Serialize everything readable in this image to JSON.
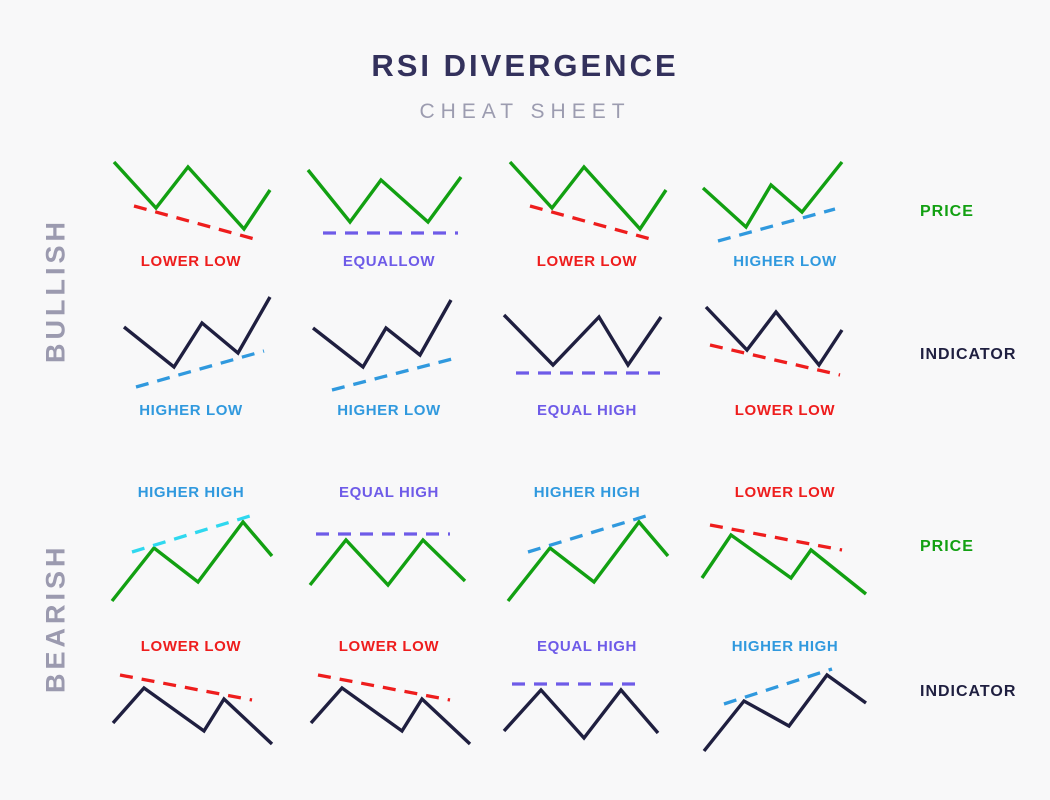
{
  "title": "RSI DIVERGENCE",
  "subtitle": "CHEAT SHEET",
  "colors": {
    "background": "#f8f8f9",
    "title_navy": "#33315c",
    "subtitle_gray": "#9c9cb0",
    "side_gray": "#9b9aaf",
    "green": "#12a012",
    "dark": "#1f1f40",
    "red": "#ee1d1d",
    "blue": "#3099de",
    "cyan": "#2fd8ef",
    "purple": "#6e5be8"
  },
  "sections": [
    {
      "name": "bullish",
      "side_label": "BULLISH",
      "label_position": "below",
      "rows": [
        {
          "row_label": "PRICE",
          "row_label_color_key": "green",
          "line_color_key": "green",
          "cells": [
            {
              "label": "LOWER LOW",
              "color_key": "red",
              "zigzag": [
                [
                  8,
                  10
                ],
                [
                  50,
                  56
                ],
                [
                  82,
                  15
                ],
                [
                  138,
                  77
                ],
                [
                  164,
                  38
                ]
              ],
              "trend": [
                [
                  28,
                  54
                ],
                [
                  152,
                  88
                ]
              ]
            },
            {
              "label": "EQUALLOW",
              "color_key": "purple",
              "zigzag": [
                [
                  4,
                  18
                ],
                [
                  46,
                  70
                ],
                [
                  77,
                  28
                ],
                [
                  124,
                  70
                ],
                [
                  157,
                  25
                ]
              ],
              "trend": [
                [
                  19,
                  81
                ],
                [
                  154,
                  81
                ]
              ]
            },
            {
              "label": "LOWER LOW",
              "color_key": "red",
              "zigzag": [
                [
                  8,
                  10
                ],
                [
                  50,
                  56
                ],
                [
                  82,
                  15
                ],
                [
                  138,
                  77
                ],
                [
                  164,
                  38
                ]
              ],
              "trend": [
                [
                  28,
                  54
                ],
                [
                  152,
                  88
                ]
              ]
            },
            {
              "label": "HIGHER LOW",
              "color_key": "blue",
              "zigzag": [
                [
                  3,
                  36
                ],
                [
                  46,
                  75
                ],
                [
                  71,
                  33
                ],
                [
                  102,
                  60
                ],
                [
                  142,
                  10
                ]
              ],
              "trend": [
                [
                  18,
                  89
                ],
                [
                  135,
                  57
                ]
              ]
            }
          ]
        },
        {
          "row_label": "INDICATOR",
          "row_label_color_key": "dark",
          "line_color_key": "dark",
          "cells": [
            {
              "label": "HIGHER LOW",
              "color_key": "blue",
              "zigzag": [
                [
                  18,
                  32
                ],
                [
                  68,
                  72
                ],
                [
                  96,
                  28
                ],
                [
                  132,
                  58
                ],
                [
                  164,
                  2
                ]
              ],
              "trend": [
                [
                  30,
                  92
                ],
                [
                  158,
                  56
                ]
              ]
            },
            {
              "label": "HIGHER LOW",
              "color_key": "blue",
              "zigzag": [
                [
                  9,
                  33
                ],
                [
                  59,
                  72
                ],
                [
                  82,
                  33
                ],
                [
                  116,
                  60
                ],
                [
                  147,
                  5
                ]
              ],
              "trend": [
                [
                  28,
                  95
                ],
                [
                  148,
                  64
                ]
              ]
            },
            {
              "label": "EQUAL HIGH",
              "color_key": "purple",
              "zigzag": [
                [
                  2,
                  20
                ],
                [
                  51,
                  70
                ],
                [
                  97,
                  22
                ],
                [
                  126,
                  70
                ],
                [
                  159,
                  22
                ]
              ],
              "trend": [
                [
                  14,
                  78
                ],
                [
                  158,
                  78
                ]
              ]
            },
            {
              "label": "LOWER LOW",
              "color_key": "red",
              "zigzag": [
                [
                  6,
                  12
                ],
                [
                  47,
                  55
                ],
                [
                  76,
                  17
                ],
                [
                  119,
                  70
                ],
                [
                  142,
                  35
                ]
              ],
              "trend": [
                [
                  10,
                  50
                ],
                [
                  140,
                  80
                ]
              ]
            }
          ]
        }
      ]
    },
    {
      "name": "bearish",
      "side_label": "BEARISH",
      "label_position": "above",
      "rows": [
        {
          "row_label": "PRICE",
          "row_label_color_key": "green",
          "line_color_key": "green",
          "cells": [
            {
              "label": "HIGHER HIGH",
              "color_key": "blue",
              "trend_color_key": "cyan",
              "zigzag": [
                [
                  6,
                  97
                ],
                [
                  48,
                  44
                ],
                [
                  92,
                  78
                ],
                [
                  137,
                  18
                ],
                [
                  166,
                  52
                ]
              ],
              "trend": [
                [
                  26,
                  48
                ],
                [
                  144,
                  12
                ]
              ]
            },
            {
              "label": "EQUAL HIGH",
              "color_key": "purple",
              "zigzag": [
                [
                  6,
                  81
                ],
                [
                  42,
                  36
                ],
                [
                  84,
                  81
                ],
                [
                  119,
                  36
                ],
                [
                  161,
                  77
                ]
              ],
              "trend": [
                [
                  12,
                  30
                ],
                [
                  146,
                  30
                ]
              ]
            },
            {
              "label": "HIGHER HIGH",
              "color_key": "blue",
              "zigzag": [
                [
                  6,
                  97
                ],
                [
                  48,
                  44
                ],
                [
                  92,
                  78
                ],
                [
                  137,
                  18
                ],
                [
                  166,
                  52
                ]
              ],
              "trend": [
                [
                  26,
                  48
                ],
                [
                  144,
                  12
                ]
              ]
            },
            {
              "label": "LOWER LOW",
              "color_key": "red",
              "zigzag": [
                [
                  2,
                  74
                ],
                [
                  31,
                  31
                ],
                [
                  91,
                  74
                ],
                [
                  111,
                  46
                ],
                [
                  166,
                  90
                ]
              ],
              "trend": [
                [
                  10,
                  21
                ],
                [
                  142,
                  46
                ]
              ]
            }
          ]
        },
        {
          "row_label": "INDICATOR",
          "row_label_color_key": "dark",
          "line_color_key": "dark",
          "cells": [
            {
              "label": "LOWER LOW",
              "color_key": "red",
              "zigzag": [
                [
                  7,
                  65
                ],
                [
                  38,
                  30
                ],
                [
                  98,
                  73
                ],
                [
                  118,
                  41
                ],
                [
                  166,
                  86
                ]
              ],
              "trend": [
                [
                  14,
                  17
                ],
                [
                  146,
                  42
                ]
              ]
            },
            {
              "label": "LOWER LOW",
              "color_key": "red",
              "zigzag": [
                [
                  7,
                  65
                ],
                [
                  38,
                  30
                ],
                [
                  98,
                  73
                ],
                [
                  118,
                  41
                ],
                [
                  166,
                  86
                ]
              ],
              "trend": [
                [
                  14,
                  17
                ],
                [
                  146,
                  42
                ]
              ]
            },
            {
              "label": "EQUAL HIGH",
              "color_key": "purple",
              "zigzag": [
                [
                  2,
                  73
                ],
                [
                  39,
                  32
                ],
                [
                  82,
                  80
                ],
                [
                  119,
                  32
                ],
                [
                  156,
                  75
                ]
              ],
              "trend": [
                [
                  10,
                  26
                ],
                [
                  140,
                  26
                ]
              ]
            },
            {
              "label": "HIGHER HIGH",
              "color_key": "blue",
              "zigzag": [
                [
                  4,
                  93
                ],
                [
                  44,
                  43
                ],
                [
                  89,
                  68
                ],
                [
                  127,
                  17
                ],
                [
                  166,
                  45
                ]
              ],
              "trend": [
                [
                  24,
                  46
                ],
                [
                  132,
                  11
                ]
              ]
            }
          ]
        }
      ]
    }
  ]
}
